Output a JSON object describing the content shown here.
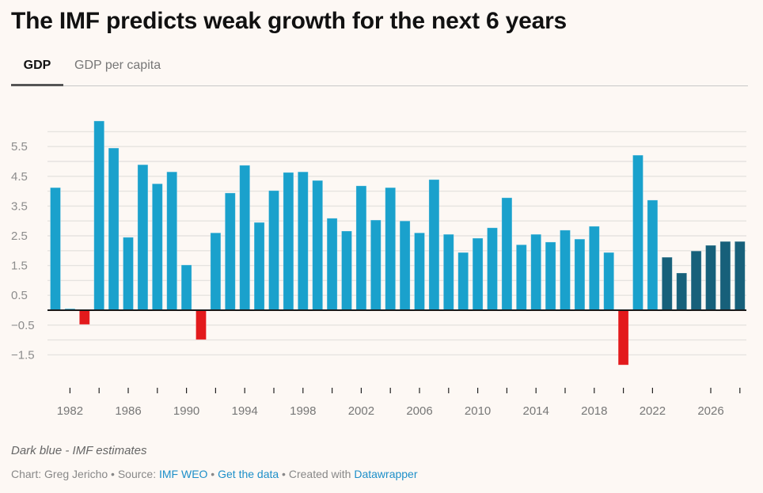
{
  "header": {
    "title": "The IMF predicts weak growth for the next 6 years"
  },
  "tabs": [
    {
      "label": "GDP",
      "active": true
    },
    {
      "label": "GDP per capita",
      "active": false
    }
  ],
  "colors": {
    "actual": "#1aa1cc",
    "estimate": "#17607a",
    "negative": "#e31a1c",
    "baseline": "#1a1a1a",
    "grid": "#e6e3e0"
  },
  "chart_data": {
    "type": "bar",
    "title": "The IMF predicts weak growth for the next 6 years",
    "xlabel": "",
    "ylabel": "",
    "ylim": [
      -2,
      6.5
    ],
    "grid": true,
    "y_ticks": [
      5.5,
      4.5,
      3.5,
      2.5,
      1.5,
      0.5,
      -0.5,
      -1.5
    ],
    "y_tick_labels": [
      "5.5",
      "4.5",
      "3.5",
      "2.5",
      "1.5",
      "0.5",
      "−0.5",
      "−1.5"
    ],
    "y_gridlines": [
      6,
      5.5,
      5,
      4.5,
      4,
      3.5,
      3,
      2.5,
      2,
      1.5,
      1,
      0.5,
      -0.5,
      -1,
      -1.5
    ],
    "x_tick_labels": [
      "1982",
      "1986",
      "1990",
      "1994",
      "1998",
      "2002",
      "2006",
      "2010",
      "2014",
      "2018",
      "2022",
      "2026"
    ],
    "x_tick_marks": [
      1982,
      1984,
      1986,
      1988,
      1990,
      1992,
      1994,
      1996,
      1998,
      2000,
      2002,
      2004,
      2006,
      2008,
      2010,
      2012,
      2014,
      2016,
      2018,
      2020,
      2022,
      2026,
      2028
    ],
    "estimate_from": 2023,
    "x": [
      1981,
      1982,
      1983,
      1984,
      1985,
      1986,
      1987,
      1988,
      1989,
      1990,
      1991,
      1992,
      1993,
      1994,
      1995,
      1996,
      1997,
      1998,
      1999,
      2000,
      2001,
      2002,
      2003,
      2004,
      2005,
      2006,
      2007,
      2008,
      2009,
      2010,
      2011,
      2012,
      2013,
      2014,
      2015,
      2016,
      2017,
      2018,
      2019,
      2020,
      2021,
      2022,
      2023,
      2024,
      2025,
      2026,
      2027,
      2028
    ],
    "series": [
      {
        "name": "GDP growth",
        "values": [
          4.12,
          0.05,
          -0.48,
          6.36,
          5.45,
          2.45,
          4.89,
          4.25,
          4.65,
          1.52,
          -0.99,
          2.6,
          3.94,
          4.87,
          2.95,
          4.02,
          4.63,
          4.65,
          4.36,
          3.09,
          2.66,
          4.18,
          3.03,
          4.12,
          3.0,
          2.6,
          4.39,
          2.55,
          1.94,
          2.42,
          2.77,
          3.78,
          2.2,
          2.55,
          2.29,
          2.69,
          2.39,
          2.82,
          1.94,
          -1.84,
          5.21,
          3.7,
          1.78,
          1.25,
          1.99,
          2.18,
          2.31,
          2.31
        ]
      }
    ],
    "legend": "none",
    "annotations": [
      "Dark blue - IMF estimates"
    ]
  },
  "footer": {
    "note": "Dark blue - IMF estimates",
    "credit_prefix": "Chart: Greg Jericho • Source: ",
    "source_link": "IMF WEO",
    "sep1": " • ",
    "get_data_link": "Get the data",
    "sep2": " • Created with ",
    "datawrapper_link": "Datawrapper"
  }
}
